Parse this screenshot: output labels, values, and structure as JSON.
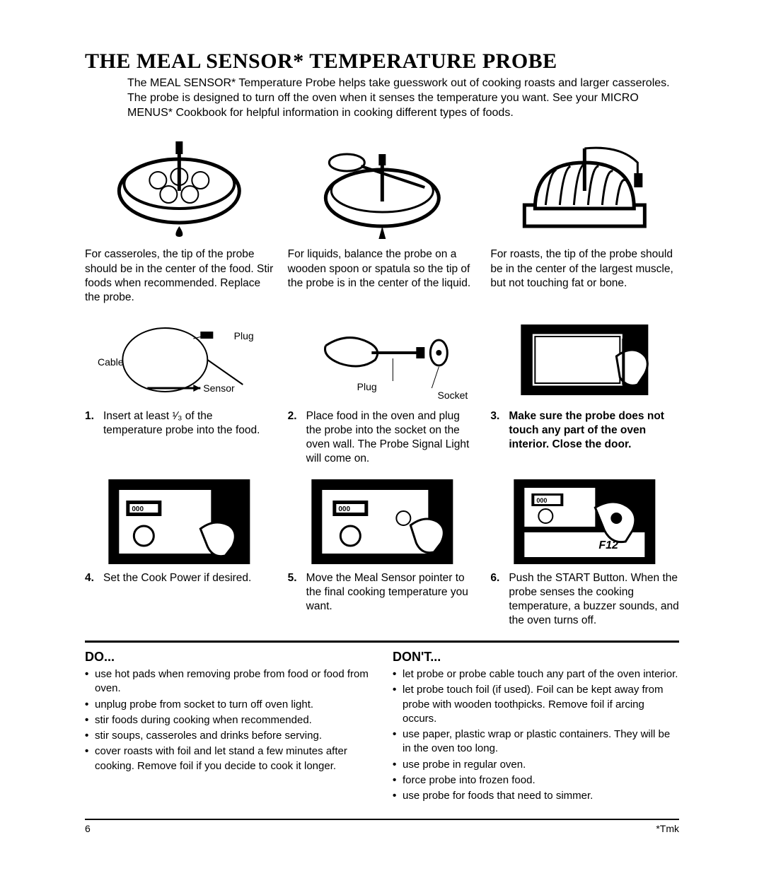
{
  "title": "THE MEAL SENSOR* TEMPERATURE PROBE",
  "intro": "The MEAL SENSOR* Temperature Probe helps take guesswork out of cooking roasts and larger casseroles. The probe is designed to turn off the oven when it senses the temperature you want. See your MICRO MENUS* Cookbook for helpful information in cooking different types of foods.",
  "tips": {
    "casserole": "For casseroles, the tip of the probe should be in the center of the food. Stir foods when recommended. Replace the probe.",
    "liquid": "For liquids, balance the probe on a wooden spoon or spatula so the tip of the probe is in the center of the liquid.",
    "roast": "For roasts, the tip of the probe should be in the center of the largest muscle, but not touching fat or bone."
  },
  "diagram_labels": {
    "plug": "Plug",
    "cable": "Cable",
    "sensor": "Sensor",
    "plug2": "Plug",
    "socket": "Socket"
  },
  "steps": {
    "s1": {
      "num": "1.",
      "text": "Insert at least ¹⁄₃ of the temperature probe into the food."
    },
    "s2": {
      "num": "2.",
      "text": "Place food in the oven and plug the probe into the socket on the oven wall. The Probe Signal Light will come on."
    },
    "s3": {
      "num": "3.",
      "text": "Make sure the probe does not touch any part of the oven interior. Close the door."
    },
    "s4": {
      "num": "4.",
      "text": "Set the Cook Power if desired."
    },
    "s5": {
      "num": "5.",
      "text": "Move the Meal Sensor pointer to the final cooking temperature you want."
    },
    "s6": {
      "num": "6.",
      "text": "Push the START Button. When the probe senses the cooking temperature, a buzzer sounds, and the oven turns off."
    }
  },
  "do_heading": "DO...",
  "dont_heading": "DON'T...",
  "do_items": [
    "use hot pads when removing probe from food or food from oven.",
    "unplug probe from socket to turn off oven light.",
    "stir foods during cooking when recommended.",
    "stir soups, casseroles and drinks before serving.",
    "cover roasts with foil and let stand a few minutes after cooking. Remove foil if you decide to cook it longer."
  ],
  "dont_items": [
    "let probe or probe cable touch any part of the oven interior.",
    "let probe touch foil (if used). Foil can be kept away from probe with wooden toothpicks. Remove foil if arcing occurs.",
    "use paper, plastic wrap or plastic containers. They will be in the oven too long.",
    "use probe in regular oven.",
    "force probe into frozen food.",
    "use probe for foods that need to simmer."
  ],
  "page_num": "6",
  "tmk": "*Tmk"
}
